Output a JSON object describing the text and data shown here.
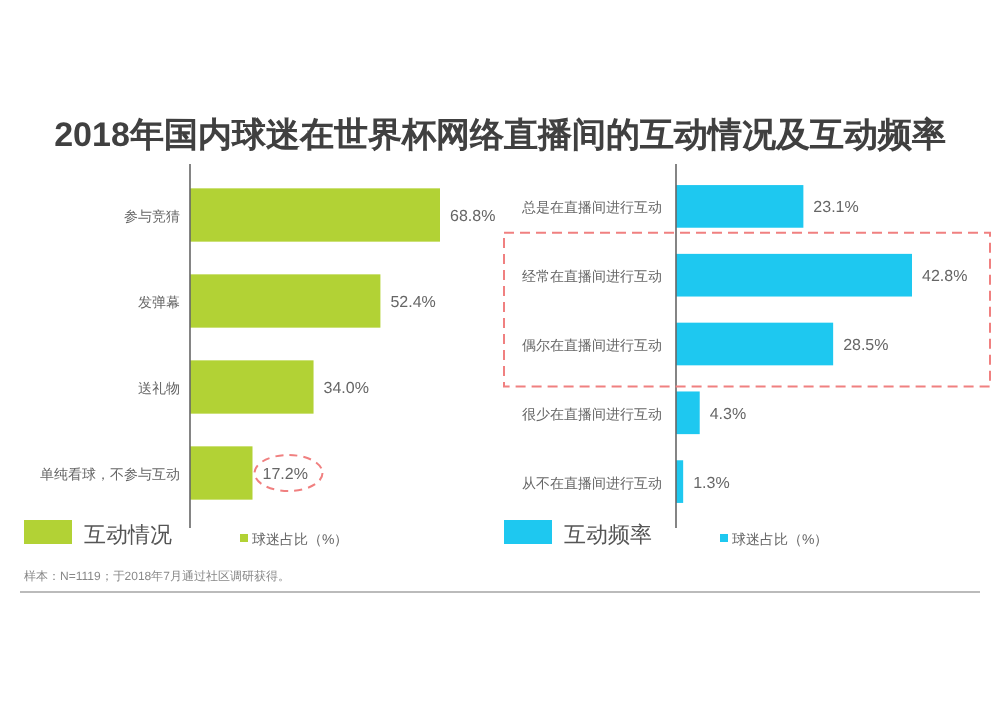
{
  "chart_data": [
    {
      "type": "bar",
      "orientation": "horizontal",
      "title": "2018年国内球迷在世界杯网络直播间的互动情况及互动频率",
      "subtitle": "互动情况",
      "categories": [
        "参与竞猜",
        "发弹幕",
        "送礼物",
        "单纯看球，不参与互动"
      ],
      "legend": "bottom",
      "series": [
        {
          "name": "球迷占比（%）",
          "color": "#b2d235",
          "values": [
            68.8,
            52.4,
            34.0,
            17.2
          ],
          "value_labels": [
            "68.8%",
            "52.4%",
            "34.0%",
            "17.2%"
          ]
        }
      ],
      "annotations": [
        "样本：N=1119；于2018年7月通过社区调研获得。"
      ]
    },
    {
      "type": "bar",
      "orientation": "horizontal",
      "subtitle": "互动频率",
      "categories": [
        "总是在直播间进行互动",
        "经常在直播间进行互动",
        "偶尔在直播间进行互动",
        "很少在直播间进行互动",
        "从不在直播间进行互动"
      ],
      "legend": "bottom",
      "series": [
        {
          "name": "球迷占比（%）",
          "color": "#1ec8f0",
          "values": [
            23.1,
            42.8,
            28.5,
            4.3,
            1.3
          ],
          "value_labels": [
            "23.1%",
            "42.8%",
            "28.5%",
            "4.3%",
            "1.3%"
          ]
        }
      ]
    }
  ]
}
